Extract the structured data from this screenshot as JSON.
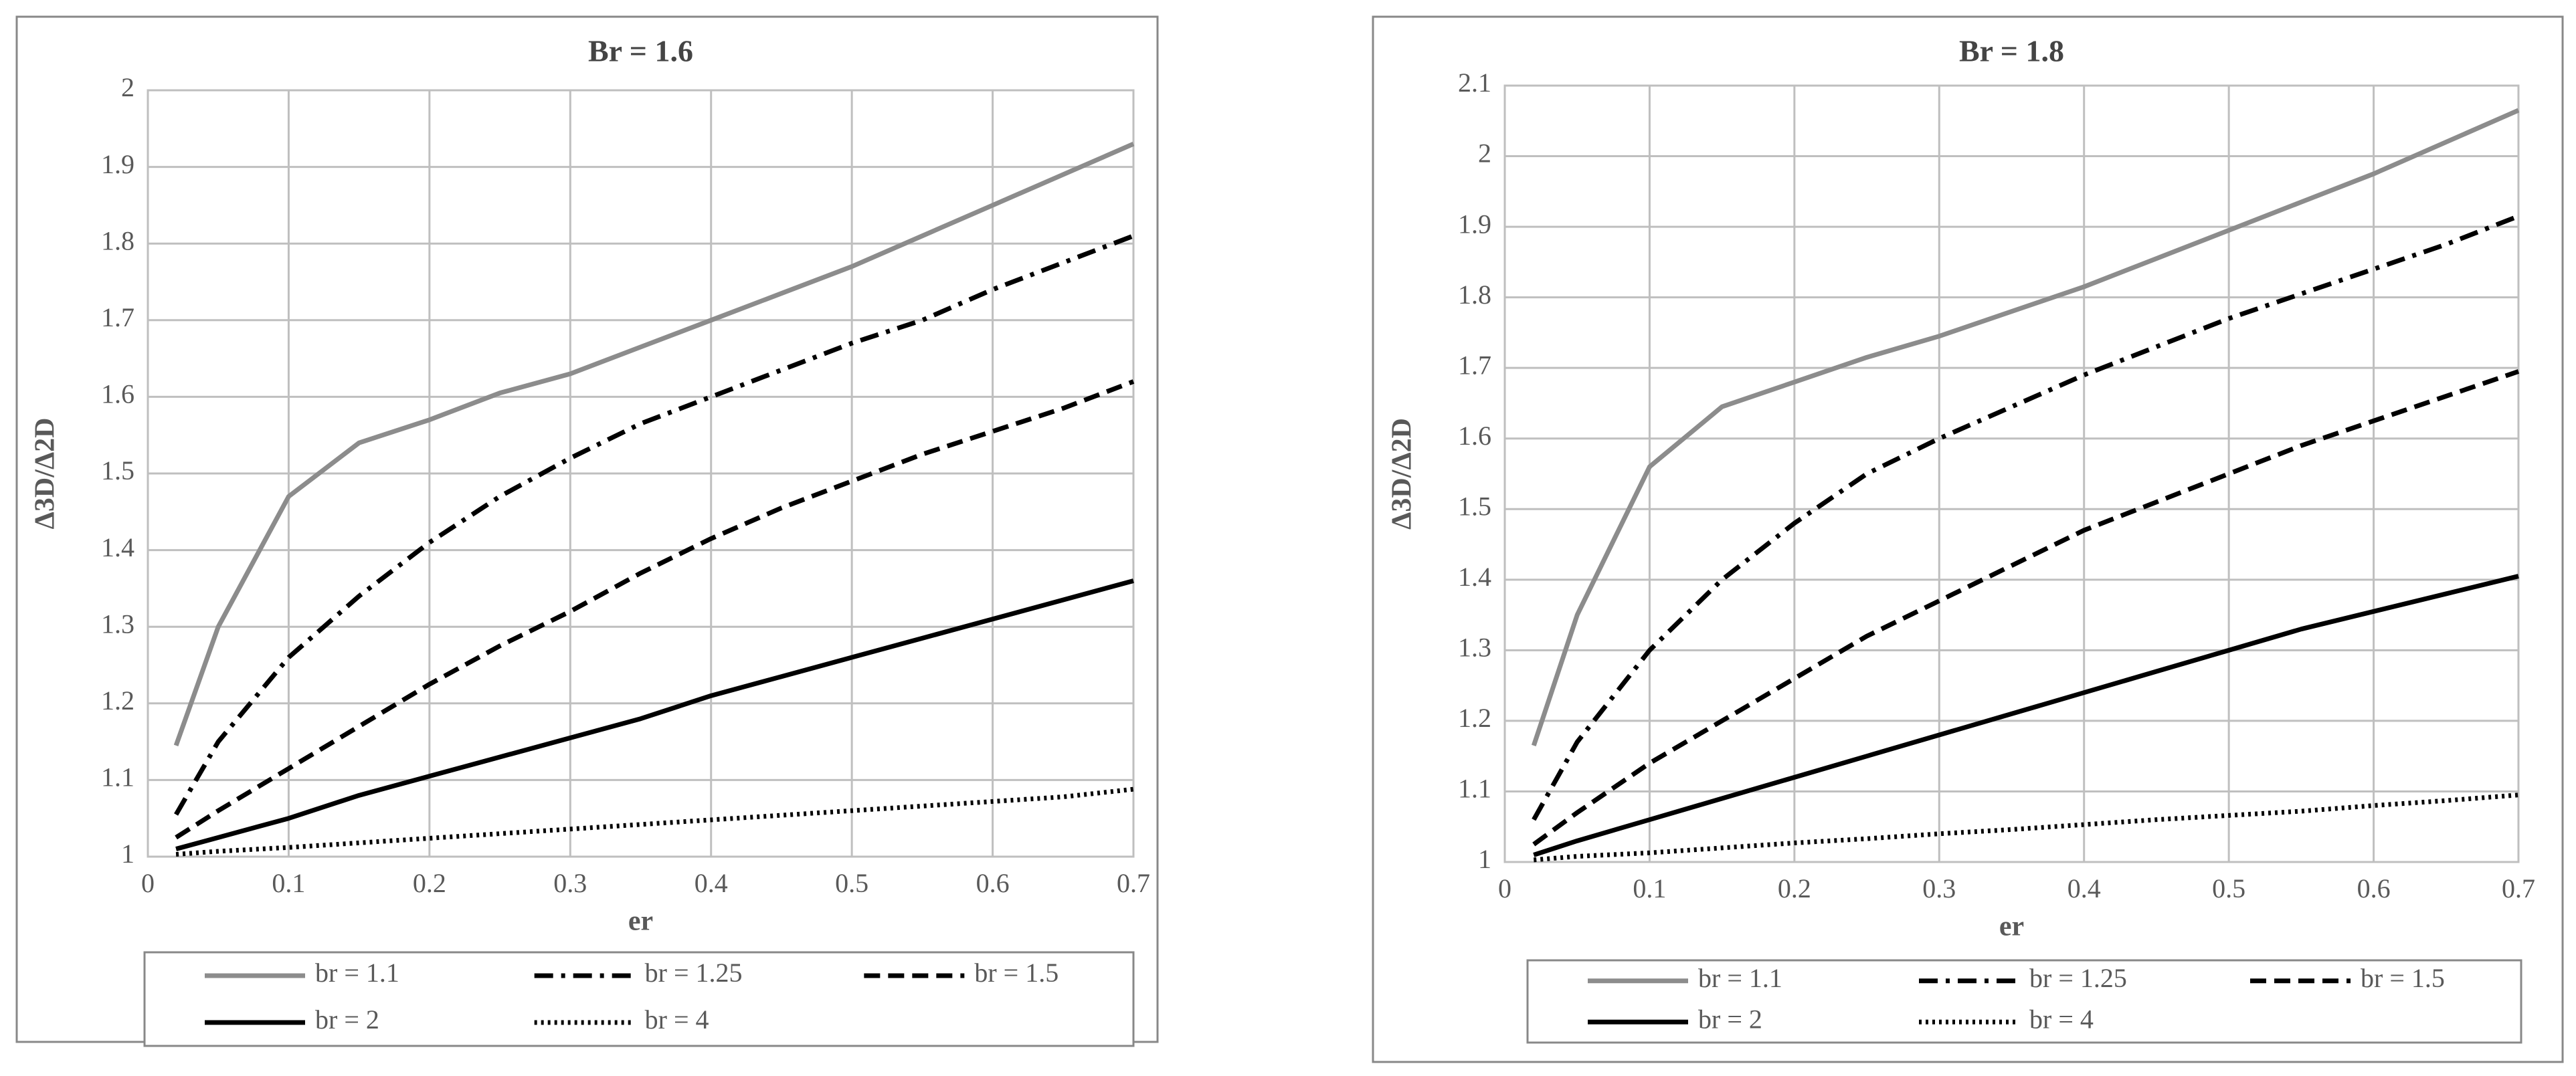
{
  "chart_data": [
    {
      "type": "line",
      "title": "Br = 1.6",
      "x_label": "er",
      "y_label": "Δ3D/Δ2D",
      "x": [
        0.02,
        0.05,
        0.1,
        0.15,
        0.2,
        0.25,
        0.3,
        0.35,
        0.4,
        0.45,
        0.5,
        0.55,
        0.6,
        0.65,
        0.7
      ],
      "xlim": [
        0,
        0.7
      ],
      "xticks": [
        0,
        0.1,
        0.2,
        0.3,
        0.4,
        0.5,
        0.6,
        0.7
      ],
      "ylim": [
        1,
        2
      ],
      "yticks": [
        1,
        1.1,
        1.2,
        1.3,
        1.4,
        1.5,
        1.6,
        1.7,
        1.8,
        1.9,
        2
      ],
      "grid": true,
      "legend": "bottom",
      "series": [
        {
          "name": "br = 1.1",
          "color": "#8c8c8c",
          "dash": "solid",
          "values": [
            1.145,
            1.3,
            1.47,
            1.54,
            1.57,
            1.605,
            1.63,
            1.665,
            1.7,
            1.735,
            1.77,
            1.81,
            1.85,
            1.89,
            1.93
          ]
        },
        {
          "name": "br = 1.25",
          "color": "#000000",
          "dash": "dashdot",
          "values": [
            1.055,
            1.15,
            1.26,
            1.34,
            1.41,
            1.47,
            1.52,
            1.565,
            1.6,
            1.635,
            1.67,
            1.7,
            1.74,
            1.775,
            1.81
          ]
        },
        {
          "name": "br = 1.5",
          "color": "#000000",
          "dash": "dash",
          "values": [
            1.025,
            1.06,
            1.115,
            1.17,
            1.225,
            1.275,
            1.32,
            1.37,
            1.415,
            1.455,
            1.49,
            1.525,
            1.555,
            1.585,
            1.62
          ]
        },
        {
          "name": "br = 2",
          "color": "#000000",
          "dash": "solid",
          "values": [
            1.01,
            1.025,
            1.05,
            1.08,
            1.105,
            1.13,
            1.155,
            1.18,
            1.21,
            1.235,
            1.26,
            1.285,
            1.31,
            1.335,
            1.36
          ]
        },
        {
          "name": "br = 4",
          "color": "#000000",
          "dash": "dot",
          "values": [
            1.003,
            1.007,
            1.012,
            1.018,
            1.024,
            1.03,
            1.036,
            1.042,
            1.048,
            1.054,
            1.06,
            1.066,
            1.072,
            1.078,
            1.088
          ]
        }
      ]
    },
    {
      "type": "line",
      "title": "Br = 1.8",
      "x_label": "er",
      "y_label": "Δ3D/Δ2D",
      "x": [
        0.02,
        0.05,
        0.1,
        0.15,
        0.2,
        0.25,
        0.3,
        0.35,
        0.4,
        0.45,
        0.5,
        0.55,
        0.6,
        0.65,
        0.7
      ],
      "xlim": [
        0,
        0.7
      ],
      "xticks": [
        0,
        0.1,
        0.2,
        0.3,
        0.4,
        0.5,
        0.6,
        0.7
      ],
      "ylim": [
        1,
        2.1
      ],
      "yticks": [
        1,
        1.1,
        1.2,
        1.3,
        1.4,
        1.5,
        1.6,
        1.7,
        1.8,
        1.9,
        2,
        2.1
      ],
      "grid": true,
      "legend": "bottom",
      "series": [
        {
          "name": "br = 1.1",
          "color": "#8c8c8c",
          "dash": "solid",
          "values": [
            1.165,
            1.35,
            1.56,
            1.645,
            1.68,
            1.715,
            1.745,
            1.78,
            1.815,
            1.855,
            1.895,
            1.935,
            1.975,
            2.02,
            2.065
          ]
        },
        {
          "name": "br = 1.25",
          "color": "#000000",
          "dash": "dashdot",
          "values": [
            1.06,
            1.17,
            1.3,
            1.4,
            1.48,
            1.55,
            1.6,
            1.645,
            1.69,
            1.73,
            1.77,
            1.805,
            1.84,
            1.875,
            1.915
          ]
        },
        {
          "name": "br = 1.5",
          "color": "#000000",
          "dash": "dash",
          "values": [
            1.025,
            1.07,
            1.14,
            1.2,
            1.26,
            1.32,
            1.37,
            1.42,
            1.47,
            1.51,
            1.55,
            1.59,
            1.625,
            1.66,
            1.695
          ]
        },
        {
          "name": "br = 2",
          "color": "#000000",
          "dash": "solid",
          "values": [
            1.01,
            1.03,
            1.06,
            1.09,
            1.12,
            1.15,
            1.18,
            1.21,
            1.24,
            1.27,
            1.3,
            1.33,
            1.355,
            1.38,
            1.405
          ]
        },
        {
          "name": "br = 4",
          "color": "#000000",
          "dash": "dot",
          "values": [
            1.003,
            1.008,
            1.013,
            1.02,
            1.027,
            1.033,
            1.04,
            1.046,
            1.053,
            1.06,
            1.066,
            1.072,
            1.08,
            1.087,
            1.095
          ]
        }
      ]
    }
  ]
}
